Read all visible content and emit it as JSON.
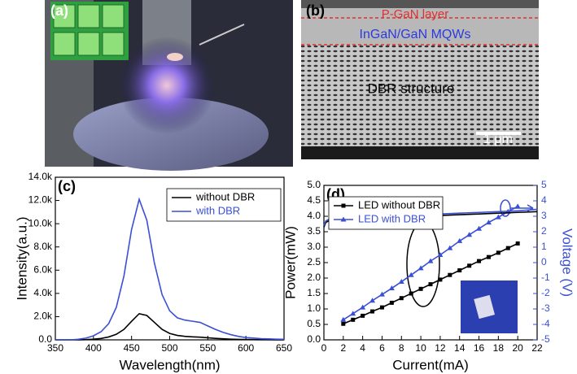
{
  "photos": [
    {
      "panel_label": "(a)"
    },
    {
      "panel_label": "(b)",
      "layer_labels": [
        "P-GaN layer",
        "InGaN/GaN MQWs"
      ],
      "structure_label": "DBR structure",
      "scale_bar": "1 μm"
    }
  ],
  "chart_data": [
    {
      "type": "line",
      "panel_label": "(c)",
      "x_label": "Wavelength(nm)",
      "y_label": "Intensity(a.u.)",
      "x": [
        350,
        360,
        370,
        380,
        390,
        400,
        410,
        420,
        430,
        440,
        450,
        460,
        470,
        480,
        490,
        500,
        510,
        520,
        530,
        540,
        550,
        560,
        570,
        580,
        590,
        600,
        610,
        620,
        630,
        640,
        650
      ],
      "series": [
        {
          "name": "without DBR",
          "color": "#000000",
          "values": [
            0,
            0,
            0,
            0,
            20,
            60,
            120,
            250,
            480,
            900,
            1600,
            2250,
            2100,
            1500,
            900,
            550,
            380,
            300,
            260,
            230,
            180,
            130,
            90,
            60,
            40,
            30,
            20,
            15,
            10,
            5,
            0
          ]
        },
        {
          "name": "with DBR",
          "color": "#3a4fd6",
          "values": [
            0,
            0,
            0,
            50,
            150,
            350,
            700,
            1400,
            2800,
            5500,
            9500,
            12100,
            10300,
            6600,
            3900,
            2500,
            1900,
            1700,
            1600,
            1500,
            1200,
            900,
            650,
            450,
            300,
            200,
            150,
            100,
            80,
            60,
            50
          ]
        }
      ],
      "xlim": [
        350,
        650
      ],
      "xticks": [
        350,
        400,
        450,
        500,
        550,
        600,
        650
      ],
      "ylim": [
        0,
        14000
      ],
      "yticks": [
        {
          "value": 0,
          "label": "0.0"
        },
        {
          "value": 2000,
          "label": "2.0k"
        },
        {
          "value": 4000,
          "label": "4.0k"
        },
        {
          "value": 6000,
          "label": "6.0k"
        },
        {
          "value": 8000,
          "label": "8.0k"
        },
        {
          "value": 10000,
          "label": "10.0k"
        },
        {
          "value": 12000,
          "label": "12.0k"
        },
        {
          "value": 14000,
          "label": "14.0k"
        }
      ],
      "grid": false,
      "legend": "upper right"
    },
    {
      "type": "line",
      "panel_label": "(d)",
      "x_label": "Current(mA)",
      "y_label": "Power(mW)",
      "y2_label": "Voltage (V)",
      "y2_color": "#3a4fd6",
      "series": [
        {
          "name": "LED without DBR",
          "color": "#000000",
          "marker": "square",
          "x": [
            2,
            3,
            4,
            5,
            6,
            7,
            8,
            9,
            10,
            11,
            12,
            13,
            14,
            15,
            16,
            17,
            18,
            19,
            20
          ],
          "values": [
            0.52,
            0.65,
            0.78,
            0.92,
            1.05,
            1.2,
            1.35,
            1.5,
            1.65,
            1.8,
            1.95,
            2.1,
            2.25,
            2.4,
            2.55,
            2.68,
            2.82,
            2.97,
            3.12
          ]
        },
        {
          "name": "LED with DBR",
          "color": "#3a4fd6",
          "marker": "triangle",
          "x": [
            2,
            3,
            4,
            5,
            6,
            7,
            8,
            9,
            10,
            11,
            12,
            13,
            14,
            15,
            16,
            17,
            18,
            19,
            20
          ],
          "values": [
            0.65,
            0.85,
            1.05,
            1.27,
            1.47,
            1.67,
            1.88,
            2.1,
            2.32,
            2.55,
            2.75,
            2.97,
            3.2,
            3.4,
            3.6,
            3.8,
            3.97,
            4.15,
            4.32
          ]
        },
        {
          "color": "#000000",
          "axis": "y2",
          "x": [
            0,
            0.2,
            0.5,
            1,
            2,
            4,
            6,
            8,
            10,
            12,
            14,
            16,
            18,
            20,
            22
          ],
          "values": [
            2.3,
            2.6,
            2.7,
            2.75,
            2.8,
            2.85,
            2.9,
            2.95,
            3.0,
            3.05,
            3.1,
            3.15,
            3.2,
            3.25,
            3.3
          ]
        },
        {
          "color": "#3a4fd6",
          "axis": "y2",
          "x": [
            0,
            0.2,
            0.5,
            1,
            2,
            4,
            6,
            8,
            10,
            12,
            14,
            16,
            18,
            20,
            22
          ],
          "values": [
            2.4,
            2.7,
            2.8,
            2.85,
            2.9,
            2.95,
            3.0,
            3.05,
            3.1,
            3.15,
            3.2,
            3.25,
            3.3,
            3.35,
            3.45
          ]
        }
      ],
      "xlim": [
        0,
        22
      ],
      "xticks": [
        0,
        2,
        4,
        6,
        8,
        10,
        12,
        14,
        16,
        18,
        20,
        22
      ],
      "ylim": [
        0,
        5
      ],
      "yticks": [
        {
          "value": 0,
          "label": "0.0"
        },
        {
          "value": 0.5,
          "label": "0.5"
        },
        {
          "value": 1,
          "label": "1.0"
        },
        {
          "value": 1.5,
          "label": "1.5"
        },
        {
          "value": 2,
          "label": "2.0"
        },
        {
          "value": 2.5,
          "label": "2.5"
        },
        {
          "value": 3,
          "label": "3.0"
        },
        {
          "value": 3.5,
          "label": "3.5"
        },
        {
          "value": 4,
          "label": "4.0"
        },
        {
          "value": 4.5,
          "label": "4.5"
        },
        {
          "value": 5,
          "label": "5.0"
        }
      ],
      "y2lim": [
        -5,
        5
      ],
      "y2ticks": [
        -5,
        -4,
        -3,
        -2,
        -1,
        0,
        1,
        2,
        3,
        4,
        5
      ],
      "grid": false,
      "legend": "upper left"
    }
  ]
}
